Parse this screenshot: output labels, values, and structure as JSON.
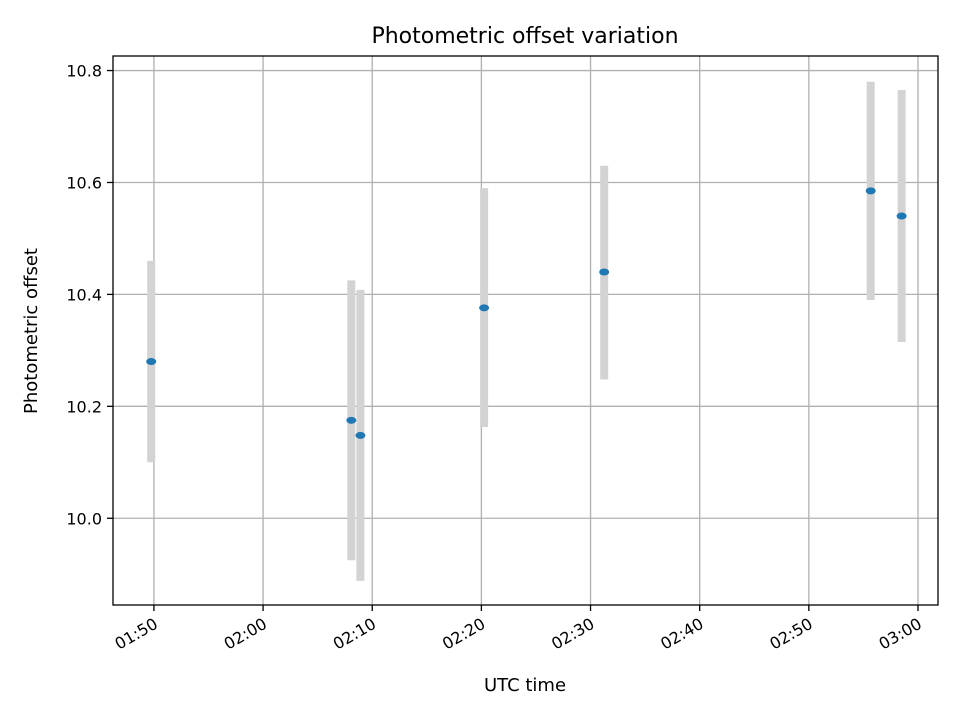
{
  "chart_data": {
    "type": "scatter",
    "title": "Photometric offset variation",
    "xlabel": "UTC time",
    "ylabel": "Photometric offset",
    "xlim": [
      "01:46:15",
      "03:01:50"
    ],
    "ylim": [
      9.845,
      10.826
    ],
    "grid": true,
    "x_ticks": [
      "01:50",
      "02:00",
      "02:10",
      "02:20",
      "02:30",
      "02:40",
      "02:50",
      "03:00"
    ],
    "y_ticks": [
      "10.0",
      "10.2",
      "10.4",
      "10.6",
      "10.8"
    ],
    "points": [
      {
        "x": "01:49:45",
        "y": 10.28,
        "yerr_low": 10.1,
        "yerr_high": 10.46
      },
      {
        "x": "02:08:05",
        "y": 10.175,
        "yerr_low": 9.925,
        "yerr_high": 10.425
      },
      {
        "x": "02:08:55",
        "y": 10.148,
        "yerr_low": 9.888,
        "yerr_high": 10.408
      },
      {
        "x": "02:20:15",
        "y": 10.376,
        "yerr_low": 10.163,
        "yerr_high": 10.59
      },
      {
        "x": "02:31:15",
        "y": 10.44,
        "yerr_low": 10.248,
        "yerr_high": 10.63
      },
      {
        "x": "02:55:40",
        "y": 10.585,
        "yerr_low": 10.39,
        "yerr_high": 10.78
      },
      {
        "x": "02:58:30",
        "y": 10.54,
        "yerr_low": 10.315,
        "yerr_high": 10.765
      }
    ],
    "colors": {
      "marker": "#1f77b4",
      "errorbar": "#d3d3d3",
      "grid": "#b0b0b0"
    }
  }
}
